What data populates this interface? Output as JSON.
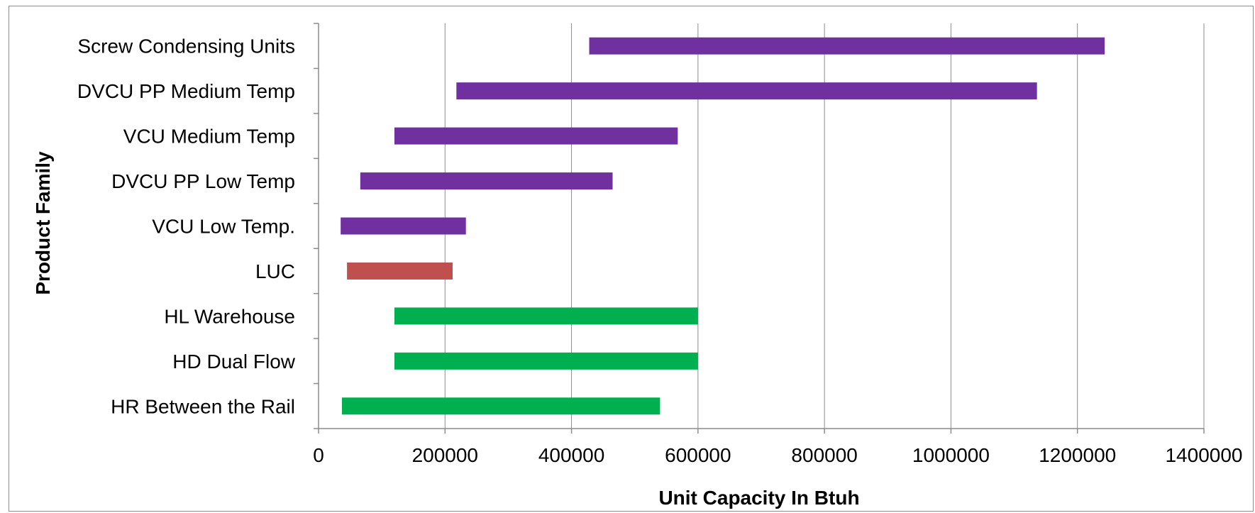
{
  "chart_data": {
    "type": "bar",
    "orientation": "horizontal",
    "subtype": "floating-range",
    "title": "",
    "xlabel": "Unit Capacity In Btuh",
    "ylabel": "Product Family",
    "xlim": [
      0,
      1400000
    ],
    "xticks": [
      0,
      200000,
      400000,
      600000,
      800000,
      1000000,
      1200000,
      1400000
    ],
    "xtick_labels": [
      "0",
      "200000",
      "400000",
      "600000",
      "800000",
      "1000000",
      "1200000",
      "1400000"
    ],
    "grid": "vertical-major",
    "legend": "none",
    "categories": [
      "Screw Condensing Units",
      "DVCU PP Medium Temp",
      "VCU Medium Temp",
      "DVCU PP Low Temp",
      "VCU Low Temp.",
      "LUC",
      "HL Warehouse",
      "HD Dual Flow",
      "HR Between the Rail"
    ],
    "ranges": [
      {
        "start": 428000,
        "end": 1243000,
        "color": "#7030a0"
      },
      {
        "start": 218000,
        "end": 1136000,
        "color": "#7030a0"
      },
      {
        "start": 120000,
        "end": 568000,
        "color": "#7030a0"
      },
      {
        "start": 66000,
        "end": 465000,
        "color": "#7030a0"
      },
      {
        "start": 35000,
        "end": 233000,
        "color": "#7030a0"
      },
      {
        "start": 45000,
        "end": 212000,
        "color": "#c0504d"
      },
      {
        "start": 120000,
        "end": 600000,
        "color": "#00b050"
      },
      {
        "start": 120000,
        "end": 600000,
        "color": "#00b050"
      },
      {
        "start": 37000,
        "end": 540000,
        "color": "#00b050"
      }
    ]
  }
}
